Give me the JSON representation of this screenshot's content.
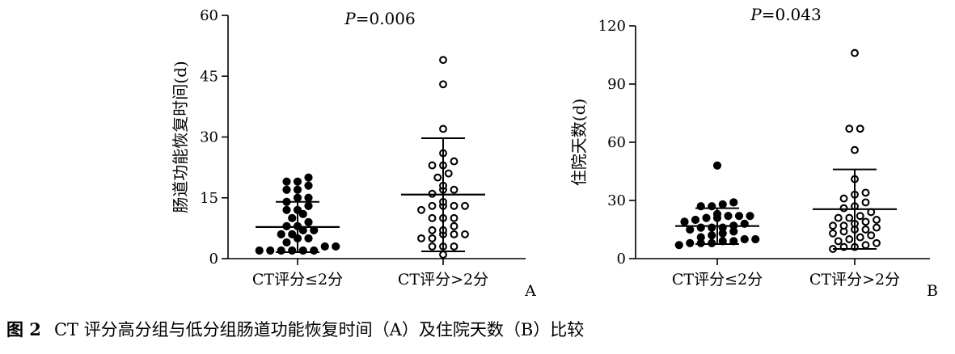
{
  "caption": {
    "label": "图 2",
    "text": "CT 评分高分组与低分组肠道功能恢复时间（A）及住院天数（B）比较"
  },
  "chart_data": [
    {
      "type": "scatter",
      "panel_label": "A",
      "annotation": "P=0.006",
      "ylabel": "肠道功能恢复时间(d)",
      "ylim": [
        0,
        60
      ],
      "yticks": [
        0,
        15,
        30,
        45,
        60
      ],
      "categories": [
        "CT评分≤2分",
        "CT评分>2分"
      ],
      "series": [
        {
          "marker": "filled",
          "values": [
            20,
            19,
            19,
            18,
            17,
            17,
            15,
            15,
            14,
            13,
            12,
            12,
            11,
            10,
            9,
            8,
            8,
            7,
            7,
            6,
            6,
            5,
            5,
            4,
            3,
            3,
            2,
            2,
            2,
            2,
            2,
            2
          ],
          "mean": 7.8,
          "sd_low": 1.6,
          "sd_high": 14
        },
        {
          "marker": "open",
          "values": [
            49,
            43,
            32,
            26,
            24,
            23,
            23,
            21,
            20,
            18,
            17,
            17,
            16,
            14,
            13,
            13,
            13,
            13,
            12,
            10,
            10,
            10,
            8,
            7,
            7,
            6,
            6,
            6,
            5,
            5,
            3,
            3,
            3,
            1
          ],
          "mean": 15.8,
          "sd_low": 1.8,
          "sd_high": 29.7
        }
      ]
    },
    {
      "type": "scatter",
      "panel_label": "B",
      "annotation": "P=0.043",
      "ylabel": "住院天数(d)",
      "ylim": [
        0,
        120
      ],
      "yticks": [
        0,
        30,
        60,
        90,
        120
      ],
      "categories": [
        "CT评分≤2分",
        "CT评分>2分"
      ],
      "series": [
        {
          "marker": "filled",
          "values": [
            48,
            29,
            28,
            27,
            27,
            23,
            22,
            22,
            22,
            21,
            21,
            20,
            19,
            18,
            17,
            16,
            16,
            16,
            15,
            14,
            13,
            12,
            11,
            10,
            10,
            9,
            9,
            8,
            8,
            8,
            7
          ],
          "mean": 16.8,
          "sd_low": 7.5,
          "sd_high": 26
        },
        {
          "marker": "open",
          "values": [
            106,
            67,
            67,
            56,
            41,
            34,
            33,
            31,
            29,
            27,
            26,
            24,
            22,
            21,
            21,
            20,
            19,
            18,
            17,
            17,
            16,
            15,
            15,
            14,
            13,
            12,
            11,
            10,
            9,
            8,
            7,
            6,
            6,
            5
          ],
          "mean": 25.5,
          "sd_low": 5,
          "sd_high": 46
        }
      ]
    }
  ]
}
